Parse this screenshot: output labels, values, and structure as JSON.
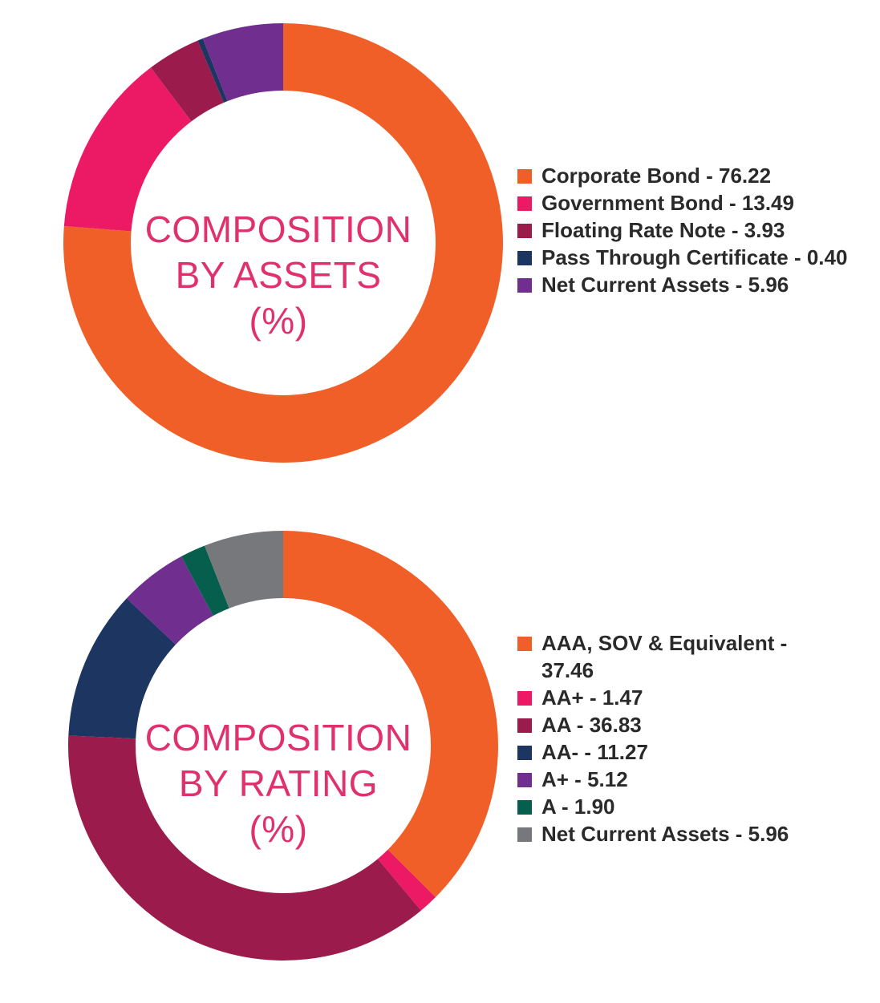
{
  "chart_data": [
    {
      "type": "pie",
      "title": "COMPOSITION BY ASSETS (%)",
      "title_lines": [
        "COMPOSITION",
        "BY ASSETS",
        "(%)"
      ],
      "style": "donut",
      "legend_position": "right",
      "slices": [
        {
          "label": "Corporate Bond",
          "value": 76.22,
          "color": "#f15f29"
        },
        {
          "label": "Government Bond",
          "value": 13.49,
          "color": "#ec1a65"
        },
        {
          "label": "Floating Rate Note",
          "value": 3.93,
          "color": "#9b1b4c"
        },
        {
          "label": "Pass Through Certificate",
          "value": 0.4,
          "color": "#1c3561"
        },
        {
          "label": "Net Current Assets",
          "value": 5.96,
          "color": "#702f8f"
        }
      ],
      "legend_entries": [
        "Corporate Bond - 76.22",
        "Government Bond - 13.49",
        "Floating Rate Note - 3.93",
        "Pass Through Certificate - 0.40",
        "Net Current Assets - 5.96"
      ]
    },
    {
      "type": "pie",
      "title": "COMPOSITION BY RATING (%)",
      "title_lines": [
        "COMPOSITION",
        "BY RATING",
        "(%)"
      ],
      "style": "donut",
      "legend_position": "right",
      "slices": [
        {
          "label": "AAA, SOV & Equivalent",
          "value": 37.46,
          "color": "#f15f29"
        },
        {
          "label": "AA+",
          "value": 1.47,
          "color": "#ec1a65"
        },
        {
          "label": "AA",
          "value": 36.83,
          "color": "#9b1b4c"
        },
        {
          "label": "AA-",
          "value": 11.27,
          "color": "#1c3561"
        },
        {
          "label": "A+",
          "value": 5.12,
          "color": "#702f8f"
        },
        {
          "label": "A",
          "value": 1.9,
          "color": "#065e4c"
        },
        {
          "label": "Net Current Assets",
          "value": 5.96,
          "color": "#77787b"
        }
      ],
      "legend_entries": [
        "AAA, SOV & Equivalent - 37.46",
        "AA+ - 1.47",
        "AA - 36.83",
        "AA- - 11.27",
        "A+ - 5.12",
        "A - 1.90",
        "Net Current Assets - 5.96"
      ]
    }
  ]
}
